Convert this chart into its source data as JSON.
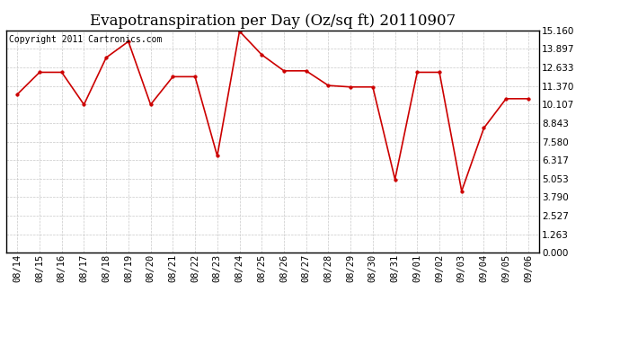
{
  "title": "Evapotranspiration per Day (Oz/sq ft) 20110907",
  "copyright": "Copyright 2011 Cartronics.com",
  "x_labels": [
    "08/14",
    "08/15",
    "08/16",
    "08/17",
    "08/18",
    "08/19",
    "08/20",
    "08/21",
    "08/22",
    "08/23",
    "08/24",
    "08/25",
    "08/26",
    "08/27",
    "08/28",
    "08/29",
    "08/30",
    "08/31",
    "09/01",
    "09/02",
    "09/03",
    "09/04",
    "09/05",
    "09/06"
  ],
  "y_values": [
    10.8,
    12.3,
    12.3,
    10.1,
    13.3,
    14.4,
    10.1,
    12.0,
    12.0,
    6.6,
    15.1,
    13.5,
    12.4,
    12.4,
    11.4,
    11.3,
    11.3,
    5.0,
    12.3,
    12.3,
    4.2,
    8.5,
    10.5,
    10.5
  ],
  "line_color": "#CC0000",
  "marker_color": "#CC0000",
  "background_color": "#ffffff",
  "grid_color": "#bbbbbb",
  "yticks": [
    0.0,
    1.263,
    2.527,
    3.79,
    5.053,
    6.317,
    7.58,
    8.843,
    10.107,
    11.37,
    12.633,
    13.897,
    15.16
  ],
  "ylim": [
    0.0,
    15.16
  ],
  "title_fontsize": 12,
  "tick_fontsize": 7.5,
  "copyright_fontsize": 7
}
